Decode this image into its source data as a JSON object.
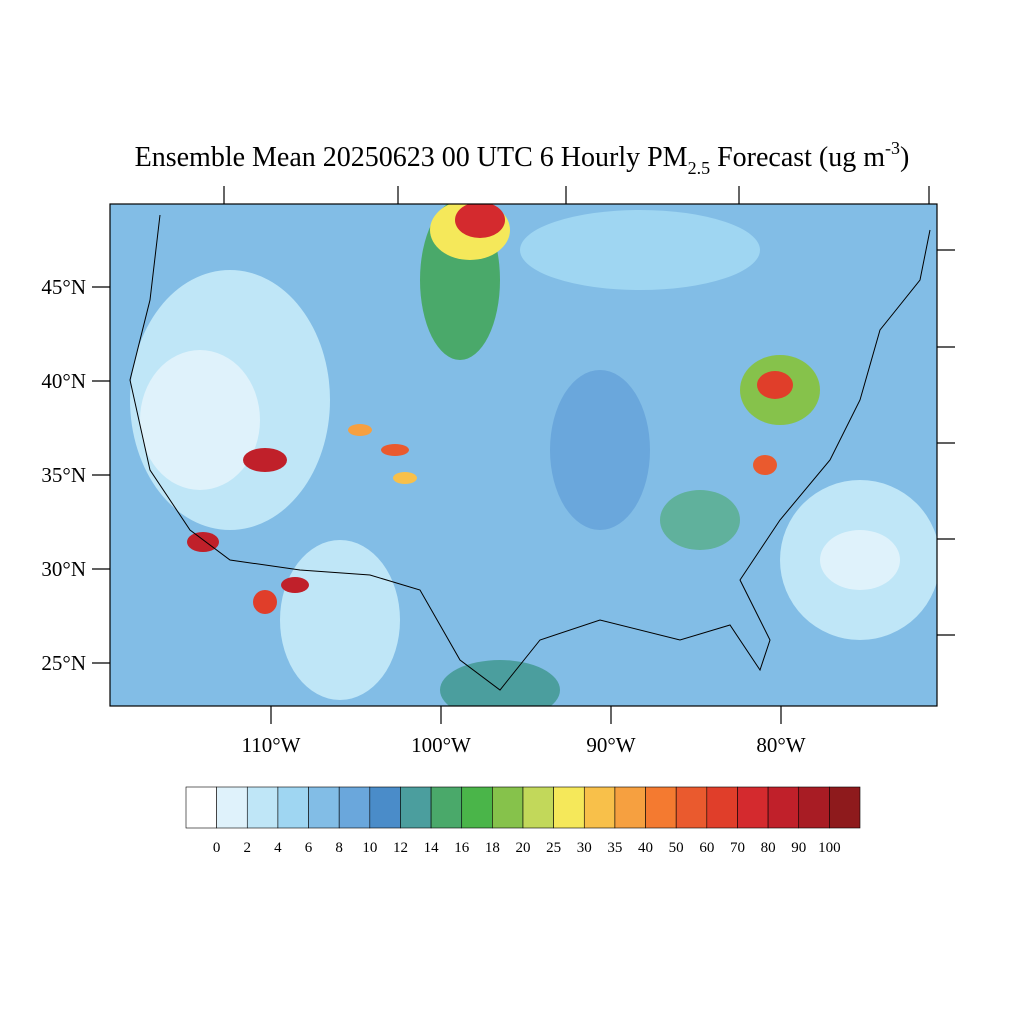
{
  "map": {
    "title": {
      "main": "Ensemble Mean 20250623 00 UTC 6 Hourly PM",
      "sub": "2.5",
      "rest": " Forecast (ug m",
      "sup": "-3",
      "end": ")"
    },
    "lat_labels": [
      "45°N",
      "40°N",
      "35°N",
      "30°N",
      "25°N"
    ],
    "lon_labels": [
      "110°W",
      "100°W",
      "90°W",
      "80°W"
    ],
    "colorbar": {
      "levels": [
        0,
        2,
        4,
        6,
        8,
        10,
        12,
        14,
        16,
        18,
        20,
        25,
        30,
        35,
        40,
        50,
        60,
        70,
        80,
        90,
        100
      ],
      "colors": [
        "#ffffff",
        "#dff2fb",
        "#bfe6f7",
        "#9fd6f2",
        "#82bde6",
        "#6aa7dc",
        "#4a8cc9",
        "#4b9e9e",
        "#4aa96a",
        "#4ab549",
        "#86c24b",
        "#c2d85a",
        "#f5e85a",
        "#f8c04a",
        "#f6a040",
        "#f47a30",
        "#ea5a2e",
        "#e03e2a",
        "#d42a2e",
        "#c0202a",
        "#a81c24",
        "#8e1a1c"
      ]
    }
  }
}
